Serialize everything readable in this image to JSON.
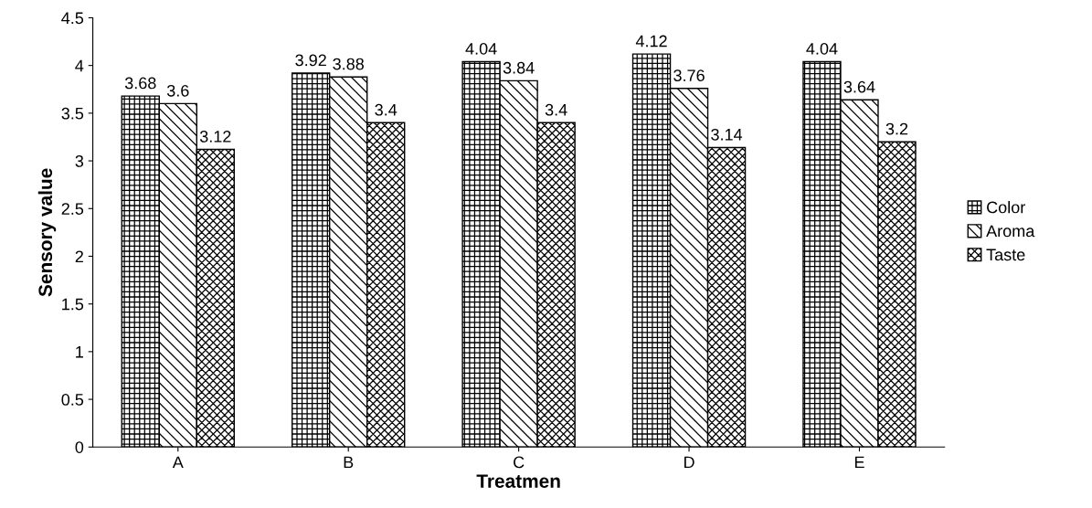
{
  "chart_data": {
    "type": "bar",
    "xlabel": "Treatmen",
    "ylabel": "Sensory value",
    "categories": [
      "A",
      "B",
      "C",
      "D",
      "E"
    ],
    "series": [
      {
        "name": "Color",
        "color": "#000000",
        "values": [
          3.68,
          3.92,
          4.04,
          4.12,
          4.04
        ]
      },
      {
        "name": "Aroma",
        "color": "#000000",
        "values": [
          3.6,
          3.88,
          3.84,
          3.76,
          3.64
        ]
      },
      {
        "name": "Taste",
        "color": "#000000",
        "values": [
          3.12,
          3.4,
          3.4,
          3.14,
          3.2
        ]
      }
    ],
    "ylim": [
      0,
      4.5
    ],
    "yticks": [
      0,
      0.5,
      1,
      1.5,
      2,
      2.5,
      3,
      3.5,
      4,
      4.5
    ],
    "grid": false,
    "legend": "right",
    "data_labels": true
  }
}
